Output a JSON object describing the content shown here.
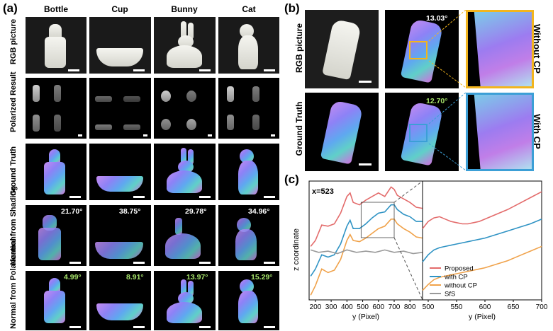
{
  "panel_a": {
    "letter": "(a)",
    "columns": [
      "Bottle",
      "Cup",
      "Bunny",
      "Cat"
    ],
    "rows": [
      {
        "label": "RGB picture"
      },
      {
        "label": "Polarized Result"
      },
      {
        "label": "Ground Truth"
      },
      {
        "label": "Normal from Shading",
        "angles": [
          "21.70°",
          "38.75°",
          "29.78°",
          "34.96°"
        ]
      },
      {
        "label": "Normal from Polarization",
        "angles": [
          "4.99°",
          "8.91°",
          "13.97°",
          "15.29°"
        ]
      }
    ]
  },
  "panel_b": {
    "letter": "(b)",
    "row_labels": [
      "RGB picture",
      "Ground Truth"
    ],
    "angles": [
      "13.03°",
      "12.70°"
    ],
    "side_labels": [
      "Without CP",
      "With CP"
    ],
    "colors": {
      "without_cp": "#f2b51e",
      "with_cp": "#3c9fd6"
    }
  },
  "panel_c": {
    "letter": "(c)",
    "annotation": "x=523"
  },
  "chart_data": {
    "type": "line",
    "ylabel": "z coordinate",
    "panels": [
      {
        "xlabel": "y (Pixel)",
        "xticks": [
          200,
          300,
          400,
          500,
          600,
          700,
          800
        ],
        "xlim": [
          160,
          880
        ],
        "series": [
          {
            "name": "Proposed",
            "color": "#e36b6b",
            "x": [
              170,
              200,
              240,
              280,
              320,
              360,
              400,
              420,
              440,
              480,
              520,
              560,
              600,
              640,
              680,
              700,
              720,
              760,
              800,
              840,
              880
            ],
            "y": [
              0.45,
              0.5,
              0.63,
              0.62,
              0.64,
              0.73,
              0.87,
              0.9,
              0.82,
              0.8,
              0.84,
              0.87,
              0.9,
              0.87,
              0.95,
              0.93,
              0.88,
              0.85,
              0.82,
              0.78,
              0.77
            ]
          },
          {
            "name": "with CP",
            "color": "#2f93c4",
            "x": [
              170,
              200,
              240,
              280,
              320,
              360,
              400,
              420,
              440,
              480,
              520,
              560,
              600,
              640,
              680,
              700,
              720,
              760,
              800,
              840,
              880
            ],
            "y": [
              0.2,
              0.26,
              0.38,
              0.36,
              0.38,
              0.47,
              0.62,
              0.67,
              0.6,
              0.6,
              0.64,
              0.69,
              0.73,
              0.74,
              0.8,
              0.8,
              0.76,
              0.72,
              0.7,
              0.66,
              0.66
            ]
          },
          {
            "name": "without CP",
            "color": "#f0a24a",
            "x": [
              170,
              200,
              240,
              280,
              320,
              360,
              400,
              420,
              440,
              480,
              520,
              560,
              600,
              640,
              680,
              700,
              720,
              760,
              800,
              840,
              880
            ],
            "y": [
              0.04,
              0.12,
              0.26,
              0.23,
              0.25,
              0.34,
              0.5,
              0.55,
              0.5,
              0.49,
              0.52,
              0.56,
              0.6,
              0.62,
              0.68,
              0.68,
              0.64,
              0.6,
              0.57,
              0.53,
              0.52
            ]
          },
          {
            "name": "SfS",
            "color": "#999999",
            "x": [
              170,
              220,
              280,
              340,
              400,
              460,
              520,
              580,
              640,
              700,
              760,
              820,
              880
            ],
            "y": [
              0.42,
              0.4,
              0.41,
              0.39,
              0.42,
              0.4,
              0.41,
              0.4,
              0.42,
              0.4,
              0.41,
              0.39,
              0.4
            ]
          }
        ]
      },
      {
        "xlabel": "y (Pixel)",
        "xticks": [
          500,
          550,
          600,
          650,
          700
        ],
        "xlim": [
          490,
          700
        ],
        "series": [
          {
            "name": "Proposed",
            "color": "#e36b6b",
            "x": [
              490,
              500,
              510,
              520,
              530,
              540,
              550,
              560,
              570,
              580,
              590,
              600,
              620,
              640,
              660,
              680,
              700
            ],
            "y": [
              0.6,
              0.66,
              0.69,
              0.7,
              0.68,
              0.66,
              0.65,
              0.64,
              0.64,
              0.65,
              0.66,
              0.68,
              0.72,
              0.76,
              0.81,
              0.86,
              0.91
            ]
          },
          {
            "name": "with CP",
            "color": "#2f93c4",
            "x": [
              490,
              500,
              510,
              520,
              530,
              540,
              550,
              560,
              570,
              580,
              590,
              600,
              620,
              640,
              660,
              680,
              700
            ],
            "y": [
              0.32,
              0.38,
              0.42,
              0.44,
              0.45,
              0.46,
              0.47,
              0.48,
              0.49,
              0.5,
              0.51,
              0.52,
              0.55,
              0.58,
              0.61,
              0.64,
              0.68
            ]
          },
          {
            "name": "without CP",
            "color": "#f0a24a",
            "x": [
              490,
              500,
              510,
              520,
              530,
              540,
              550,
              560,
              570,
              580,
              590,
              600,
              620,
              640,
              660,
              680,
              700
            ],
            "y": [
              0.08,
              0.13,
              0.17,
              0.19,
              0.2,
              0.21,
              0.22,
              0.23,
              0.24,
              0.25,
              0.26,
              0.27,
              0.3,
              0.33,
              0.37,
              0.41,
              0.45
            ]
          }
        ],
        "legend": [
          "Proposed",
          "with CP",
          "without CP",
          "SfS"
        ]
      }
    ]
  }
}
